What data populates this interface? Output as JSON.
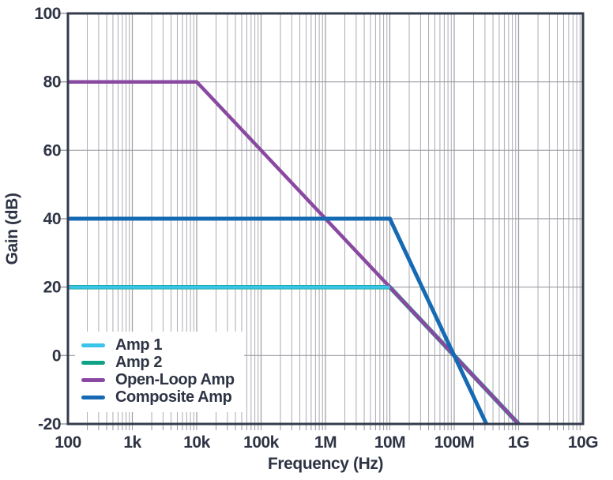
{
  "colors": {
    "text": "#2E3444",
    "frame": "#343B4E",
    "grid_major": "#9B9BA3",
    "grid_minor": "#ACACB3",
    "tick": "#9B9BA3",
    "background": "#FFFFFF",
    "legend_background": "#FFFFFF"
  },
  "chart_data": {
    "type": "line",
    "title": "",
    "xlabel": "Frequency (Hz)",
    "ylabel": "Gain (dB)",
    "x_scale": "log",
    "y_scale": "linear",
    "xlim": [
      100,
      10000000000
    ],
    "ylim": [
      -20,
      100
    ],
    "x_ticks": [
      {
        "value": 100,
        "label": "100"
      },
      {
        "value": 1000,
        "label": "1k"
      },
      {
        "value": 10000,
        "label": "10k"
      },
      {
        "value": 100000,
        "label": "100k"
      },
      {
        "value": 1000000,
        "label": "1M"
      },
      {
        "value": 10000000,
        "label": "10M"
      },
      {
        "value": 100000000,
        "label": "100M"
      },
      {
        "value": 1000000000,
        "label": "1G"
      },
      {
        "value": 10000000000,
        "label": "10G"
      }
    ],
    "y_ticks": [
      {
        "value": -20,
        "label": "-20"
      },
      {
        "value": 0,
        "label": "0"
      },
      {
        "value": 20,
        "label": "20"
      },
      {
        "value": 40,
        "label": "40"
      },
      {
        "value": 60,
        "label": "60"
      },
      {
        "value": 80,
        "label": "80"
      },
      {
        "value": 100,
        "label": "100"
      }
    ],
    "grid": {
      "x_major": true,
      "x_minor_log": true,
      "y_major": true,
      "y_minor": false
    },
    "legend": {
      "position": "bottom-left"
    },
    "series": [
      {
        "name": "amp1",
        "legend_label": "Amp 1",
        "color": "#3BC4E9",
        "points": [
          [
            100,
            20
          ],
          [
            10000000,
            20
          ]
        ]
      },
      {
        "name": "amp2",
        "legend_label": "Amp 2",
        "color": "#0FA287",
        "points": [
          [
            100,
            20
          ],
          [
            10000000,
            20
          ],
          [
            1000000000,
            -20
          ]
        ]
      },
      {
        "name": "open_loop",
        "legend_label": "Open-Loop Amp",
        "color": "#8A49A1",
        "points": [
          [
            100,
            80
          ],
          [
            10000,
            80
          ],
          [
            1000000000,
            -20
          ]
        ]
      },
      {
        "name": "composite",
        "legend_label": "Composite Amp",
        "color": "#156AB3",
        "points": [
          [
            100,
            40
          ],
          [
            10000000,
            40
          ],
          [
            316227766,
            -20
          ]
        ]
      }
    ]
  }
}
